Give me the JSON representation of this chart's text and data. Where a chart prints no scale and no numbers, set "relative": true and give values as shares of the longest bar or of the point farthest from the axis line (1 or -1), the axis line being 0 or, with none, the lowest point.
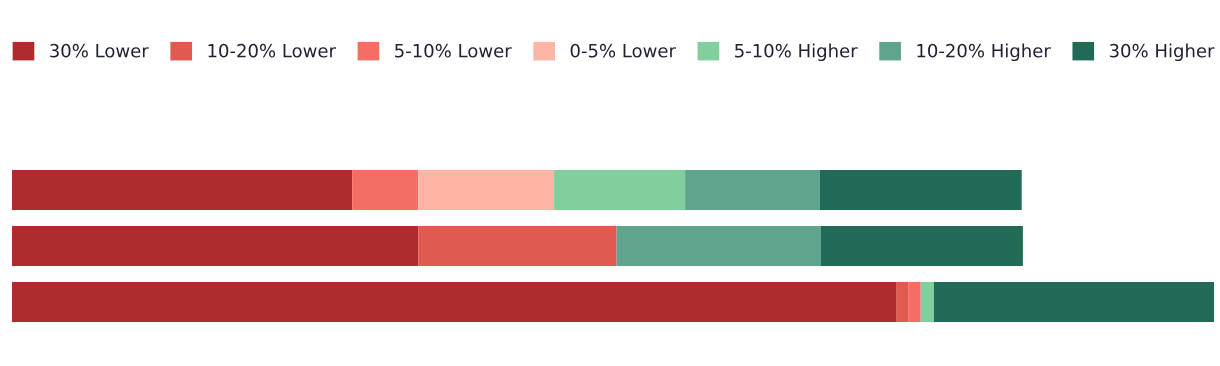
{
  "chart_data": {
    "type": "bar",
    "orientation": "horizontal",
    "stacked": true,
    "relative": true,
    "legend": "top left",
    "categories": [
      null,
      null,
      null
    ],
    "series": [
      {
        "name": "30% Lower",
        "color": "#ae2b2e",
        "values": [
          0.283,
          0.338,
          0.736
        ]
      },
      {
        "name": "10-20% Lower",
        "color": "#e05a4f",
        "values": [
          0,
          0.165,
          0.01
        ]
      },
      {
        "name": "5-10% Lower",
        "color": "#f46e63",
        "values": [
          0.055,
          0,
          0.01
        ]
      },
      {
        "name": "0-5% Lower",
        "color": "#fdb5a6",
        "values": [
          0.113,
          0,
          0
        ]
      },
      {
        "name": "5-10% Higher",
        "color": "#80cf9c",
        "values": [
          0.109,
          0,
          0.011
        ]
      },
      {
        "name": "10-20% Higher",
        "color": "#5fa48d",
        "values": [
          0.112,
          0.17,
          0
        ]
      },
      {
        "name": "30% Higher",
        "color": "#216a55",
        "values": [
          0.168,
          0.168,
          0.233
        ]
      }
    ]
  }
}
